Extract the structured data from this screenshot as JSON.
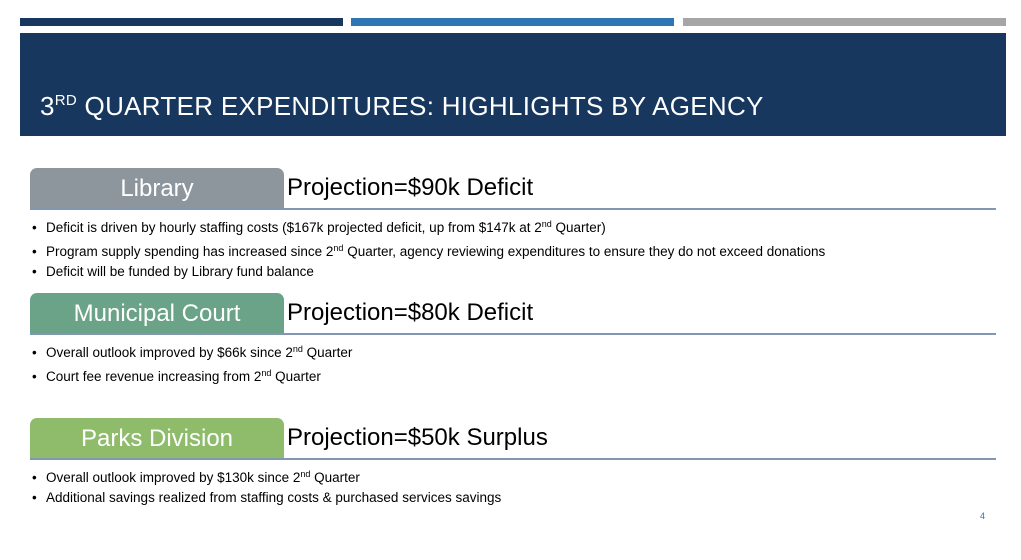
{
  "colors": {
    "title_band": "#17375e",
    "top_bar_1": "#17375e",
    "top_bar_2": "#2e75b6",
    "top_bar_3": "#a6a6a6",
    "library_tab": "#8c969c",
    "court_tab": "#6aa387",
    "parks_tab": "#8fbc6a",
    "rule": "#8497b0"
  },
  "slide": {
    "title": {
      "pre": "3",
      "sup": "RD",
      "post": " QUARTER EXPENDITURES: HIGHLIGHTS BY AGENCY"
    },
    "page_number": "4"
  },
  "sections": [
    {
      "agency": "Library",
      "projection": "Projection=$90k Deficit",
      "bullets": [
        {
          "pre": "Deficit is driven by hourly staffing costs ($167k projected deficit, up from $147k at 2",
          "sup": "nd",
          "post": " Quarter)"
        },
        {
          "pre": "Program supply spending has increased since 2",
          "sup": "nd",
          "post": " Quarter, agency reviewing expenditures to ensure they do not exceed donations"
        },
        {
          "pre": "Deficit will be funded by Library fund balance",
          "sup": "",
          "post": ""
        }
      ]
    },
    {
      "agency": "Municipal Court",
      "projection": "Projection=$80k Deficit",
      "bullets": [
        {
          "pre": "Overall outlook improved by $66k since 2",
          "sup": "nd",
          "post": " Quarter"
        },
        {
          "pre": "Court fee revenue increasing from 2",
          "sup": "nd",
          "post": " Quarter"
        }
      ]
    },
    {
      "agency": "Parks Division",
      "projection": "Projection=$50k Surplus",
      "bullets": [
        {
          "pre": "Overall outlook improved by $130k since 2",
          "sup": "nd",
          "post": " Quarter"
        },
        {
          "pre": "Additional savings realized from staffing costs & purchased services savings",
          "sup": "",
          "post": ""
        }
      ]
    }
  ]
}
